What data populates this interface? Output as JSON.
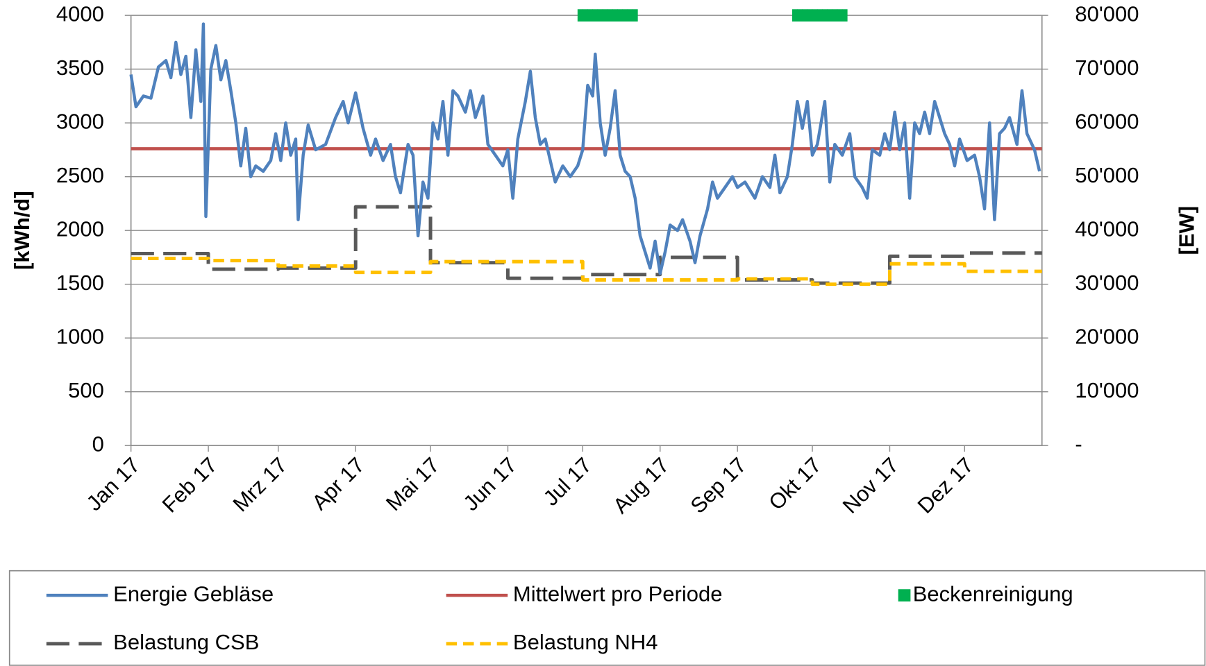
{
  "chart_data": {
    "type": "line",
    "ylabel": "[kWh/d]",
    "y2label": "[EW]",
    "xlim": [
      0,
      365
    ],
    "xticks": [
      {
        "value": 0,
        "label": "Jan 17"
      },
      {
        "value": 31,
        "label": "Feb 17"
      },
      {
        "value": 59,
        "label": "Mrz 17"
      },
      {
        "value": 90,
        "label": "Apr 17"
      },
      {
        "value": 120,
        "label": "Mai 17"
      },
      {
        "value": 151,
        "label": "Jun 17"
      },
      {
        "value": 181,
        "label": "Jul 17"
      },
      {
        "value": 212,
        "label": "Aug 17"
      },
      {
        "value": 243,
        "label": "Sep 17"
      },
      {
        "value": 273,
        "label": "Okt 17"
      },
      {
        "value": 304,
        "label": "Nov 17"
      },
      {
        "value": 334,
        "label": "Dez 17"
      }
    ],
    "ylim": [
      0,
      4000
    ],
    "yticks": [
      0,
      500,
      1000,
      1500,
      2000,
      2500,
      3000,
      3500,
      4000
    ],
    "y2lim": [
      0,
      80000
    ],
    "y2ticks": [
      {
        "value": 0,
        "label": "-"
      },
      {
        "value": 10000,
        "label": "10'000"
      },
      {
        "value": 20000,
        "label": "20'000"
      },
      {
        "value": 30000,
        "label": "30'000"
      },
      {
        "value": 40000,
        "label": "40'000"
      },
      {
        "value": 50000,
        "label": "50'000"
      },
      {
        "value": 60000,
        "label": "60'000"
      },
      {
        "value": 70000,
        "label": "70'000"
      },
      {
        "value": 80000,
        "label": "80'000"
      }
    ],
    "grid": true,
    "legend": "bottom",
    "series": [
      {
        "name": "Energie Gebläse",
        "color": "#4f81bd",
        "style": "solid",
        "x": [
          0,
          2,
          5,
          8,
          11,
          14,
          16,
          18,
          20,
          22,
          24,
          26,
          28,
          29,
          30,
          32,
          34,
          36,
          38,
          40,
          42,
          44,
          46,
          48,
          50,
          53,
          56,
          58,
          60,
          62,
          64,
          66,
          67,
          69,
          71,
          74,
          78,
          82,
          85,
          87,
          90,
          93,
          96,
          98,
          101,
          104,
          106,
          108,
          111,
          113,
          115,
          117,
          119,
          121,
          123,
          125,
          127,
          129,
          131,
          134,
          136,
          138,
          141,
          143,
          146,
          149,
          151,
          153,
          155,
          158,
          160,
          162,
          164,
          166,
          168,
          170,
          173,
          176,
          179,
          181,
          183,
          185,
          186,
          188,
          190,
          192,
          194,
          196,
          198,
          200,
          202,
          204,
          206,
          208,
          210,
          212,
          214,
          216,
          219,
          221,
          224,
          226,
          228,
          231,
          233,
          235,
          238,
          241,
          243,
          246,
          250,
          253,
          256,
          258,
          260,
          263,
          265,
          267,
          269,
          271,
          273,
          275,
          278,
          280,
          282,
          285,
          288,
          290,
          293,
          295,
          297,
          300,
          302,
          304,
          306,
          308,
          310,
          312,
          314,
          316,
          318,
          320,
          322,
          324,
          326,
          328,
          330,
          332,
          335,
          338,
          340,
          342,
          344,
          346,
          348,
          350,
          352,
          355,
          357,
          359,
          362,
          364
        ],
        "values": [
          3450,
          3150,
          3250,
          3230,
          3520,
          3580,
          3420,
          3750,
          3450,
          3620,
          3050,
          3680,
          3200,
          3920,
          2130,
          3500,
          3720,
          3400,
          3580,
          3300,
          3000,
          2600,
          2950,
          2500,
          2600,
          2550,
          2650,
          2900,
          2650,
          3000,
          2700,
          2850,
          2100,
          2700,
          2980,
          2750,
          2800,
          3050,
          3200,
          3000,
          3280,
          2950,
          2700,
          2850,
          2650,
          2800,
          2500,
          2350,
          2800,
          2700,
          1950,
          2450,
          2300,
          3000,
          2850,
          3200,
          2700,
          3300,
          3250,
          3100,
          3300,
          3050,
          3250,
          2800,
          2700,
          2600,
          2750,
          2300,
          2850,
          3200,
          3480,
          3050,
          2800,
          2850,
          2650,
          2450,
          2600,
          2500,
          2600,
          2750,
          3350,
          3250,
          3640,
          3000,
          2700,
          2950,
          3300,
          2700,
          2550,
          2500,
          2300,
          1950,
          1800,
          1650,
          1900,
          1600,
          1800,
          2050,
          2000,
          2100,
          1900,
          1700,
          1950,
          2200,
          2450,
          2300,
          2400,
          2500,
          2400,
          2450,
          2300,
          2500,
          2400,
          2700,
          2350,
          2500,
          2800,
          3200,
          2950,
          3200,
          2700,
          2800,
          3200,
          2450,
          2800,
          2700,
          2900,
          2500,
          2400,
          2300,
          2750,
          2700,
          2900,
          2750,
          3100,
          2750,
          3000,
          2300,
          3000,
          2900,
          3100,
          2900,
          3200,
          3050,
          2900,
          2800,
          2600,
          2850,
          2650,
          2700,
          2500,
          2200,
          3000,
          2100,
          2900,
          2950,
          3050,
          2800,
          3300,
          2900,
          2750,
          2550
        ]
      },
      {
        "name": "Mittelwert pro Periode",
        "color": "#c0504d",
        "style": "solid",
        "x": [
          0,
          365
        ],
        "values": [
          2760,
          2760
        ]
      },
      {
        "name": "Beckenreinigung",
        "color": "#00b050",
        "style": "marker",
        "x": [
          180,
          182,
          184,
          186,
          188,
          190,
          192,
          194,
          196,
          198,
          200,
          202,
          266,
          268,
          270,
          272,
          274,
          276,
          278,
          280,
          282,
          284,
          286
        ],
        "values": [
          4000,
          4000,
          4000,
          4000,
          4000,
          4000,
          4000,
          4000,
          4000,
          4000,
          4000,
          4000,
          4000,
          4000,
          4000,
          4000,
          4000,
          4000,
          4000,
          4000,
          4000,
          4000,
          4000
        ]
      },
      {
        "name": "Belastung CSB",
        "color": "#595959",
        "style": "long-dash",
        "axis": "y2",
        "x": [
          0,
          31,
          31,
          59,
          59,
          90,
          90,
          120,
          120,
          151,
          151,
          181,
          181,
          212,
          212,
          243,
          243,
          273,
          273,
          304,
          304,
          334,
          334,
          365
        ],
        "values": [
          35700,
          35700,
          32800,
          32800,
          33000,
          33000,
          44400,
          44400,
          34000,
          34000,
          31100,
          31100,
          31800,
          31800,
          35000,
          35000,
          30800,
          30800,
          30200,
          30200,
          35200,
          35200,
          35800,
          35800
        ]
      },
      {
        "name": "Belastung NH4",
        "color": "#ffc000",
        "style": "short-dash",
        "axis": "y2",
        "x": [
          0,
          31,
          31,
          59,
          59,
          90,
          90,
          120,
          120,
          181,
          181,
          243,
          243,
          273,
          273,
          304,
          304,
          334,
          334,
          365
        ],
        "values": [
          34800,
          34800,
          34400,
          34400,
          33400,
          33400,
          32200,
          32200,
          34200,
          34200,
          30800,
          30800,
          31000,
          31000,
          30000,
          30000,
          33800,
          33800,
          32400,
          32400
        ]
      }
    ]
  }
}
